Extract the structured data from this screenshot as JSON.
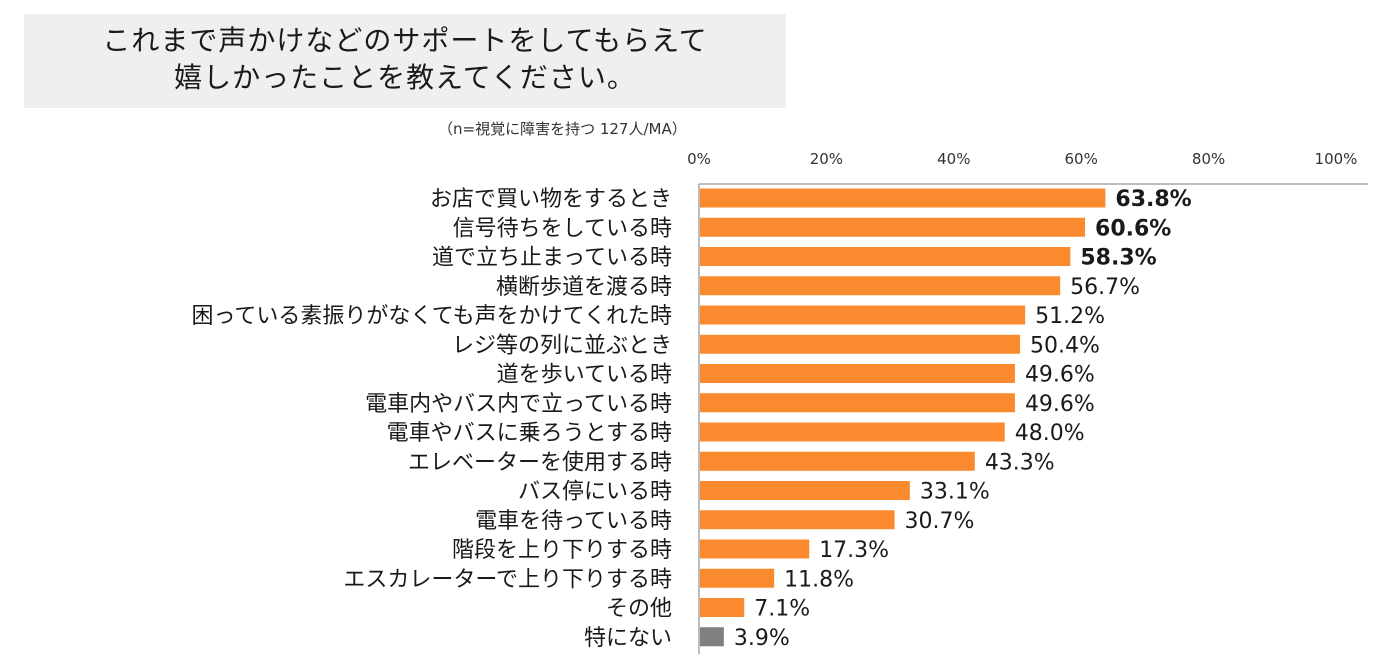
{
  "title": {
    "line1": "これまで声かけなどのサポートをしてもらえて",
    "line2": "嬉しかったことを教えてください。"
  },
  "note": "（n=視覚に障害を持つ 127人/MA）",
  "chart_data": {
    "type": "bar",
    "orientation": "horizontal",
    "title": "これまで声かけなどのサポートをしてもらえて嬉しかったことを教えてください。",
    "xlim": [
      0,
      100
    ],
    "ticks": [
      "0%",
      "20%",
      "40%",
      "60%",
      "80%",
      "100%"
    ],
    "tick_values": [
      0,
      20,
      40,
      60,
      80,
      100
    ],
    "categories": [
      "お店で買い物をするとき",
      "信号待ちをしている時",
      "道で立ち止まっている時",
      "横断歩道を渡る時",
      "困っている素振りがなくても声をかけてくれた時",
      "レジ等の列に並ぶとき",
      "道を歩いている時",
      "電車内やバス内で立っている時",
      "電車やバスに乗ろうとする時",
      "エレベーターを使用する時",
      "バス停にいる時",
      "電車を待っている時",
      "階段を上り下りする時",
      "エスカレーターで上り下りする時",
      "その他",
      "特にない"
    ],
    "values": [
      63.8,
      60.6,
      58.3,
      56.7,
      51.2,
      50.4,
      49.6,
      49.6,
      48.0,
      43.3,
      33.1,
      30.7,
      17.3,
      11.8,
      7.1,
      3.9
    ],
    "value_labels": [
      "63.8%",
      "60.6%",
      "58.3%",
      "56.7%",
      "51.2%",
      "50.4%",
      "49.6%",
      "49.6%",
      "48.0%",
      "43.3%",
      "33.1%",
      "30.7%",
      "17.3%",
      "11.8%",
      "7.1%",
      "3.9%"
    ],
    "highlight_top": 3,
    "colors": {
      "bar": "#fb8a2e",
      "bar_last": "#808080",
      "axis": "#a6a6a6"
    }
  }
}
